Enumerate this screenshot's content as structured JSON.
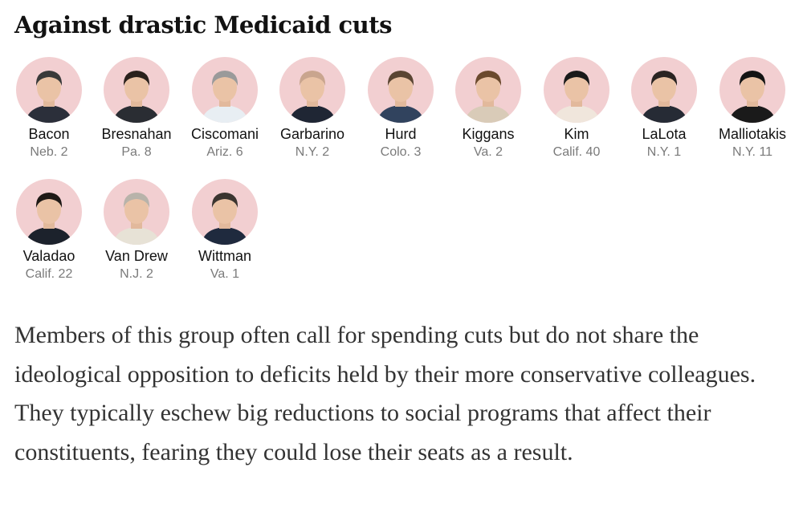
{
  "heading": "Against drastic Medicaid cuts",
  "members": [
    {
      "name": "Bacon",
      "district": "Neb. 2",
      "hair": "#3a3a3a",
      "suit": "#2b2f3a"
    },
    {
      "name": "Bresnahan",
      "district": "Pa. 8",
      "hair": "#2a211c",
      "suit": "#2a2d33"
    },
    {
      "name": "Ciscomani",
      "district": "Ariz. 6",
      "hair": "#9a9a9a",
      "suit": "#e8eef3"
    },
    {
      "name": "Garbarino",
      "district": "N.Y. 2",
      "hair": "#c9a58e",
      "suit": "#1f2634"
    },
    {
      "name": "Hurd",
      "district": "Colo. 3",
      "hair": "#5a4533",
      "suit": "#31435e"
    },
    {
      "name": "Kiggans",
      "district": "Va. 2",
      "hair": "#6b4a2e",
      "suit": "#d9cbb8"
    },
    {
      "name": "Kim",
      "district": "Calif. 40",
      "hair": "#1a1a1a",
      "suit": "#f0e6dc"
    },
    {
      "name": "LaLota",
      "district": "N.Y. 1",
      "hair": "#2a2422",
      "suit": "#262b35"
    },
    {
      "name": "Malliotakis",
      "district": "N.Y. 11",
      "hair": "#141414",
      "suit": "#1a1a1a"
    },
    {
      "name": "Valadao",
      "district": "Calif. 22",
      "hair": "#1f1a17",
      "suit": "#1c222c"
    },
    {
      "name": "Van Drew",
      "district": "N.J. 2",
      "hair": "#b8b3aa",
      "suit": "#e7e2d6"
    },
    {
      "name": "Wittman",
      "district": "Va. 1",
      "hair": "#3b3530",
      "suit": "#1f2a3e"
    }
  ],
  "paragraph": "Members of this group often call for spending cuts but do not share the ideological opposition to deficits held by their more conservative colleagues. They typically eschew big reductions to social programs that affect their constituents, fearing they could lose their seats as a result."
}
